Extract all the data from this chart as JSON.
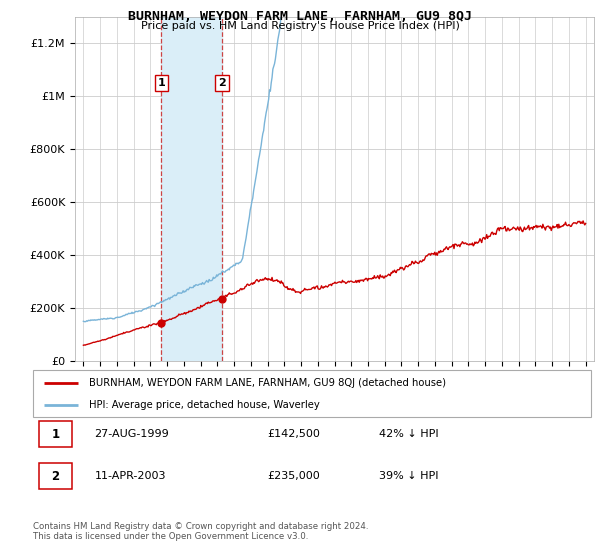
{
  "title": "BURNHAM, WEYDON FARM LANE, FARNHAM, GU9 8QJ",
  "subtitle": "Price paid vs. HM Land Registry's House Price Index (HPI)",
  "legend_line1": "BURNHAM, WEYDON FARM LANE, FARNHAM, GU9 8QJ (detached house)",
  "legend_line2": "HPI: Average price, detached house, Waverley",
  "sale1_label": "1",
  "sale1_date": "27-AUG-1999",
  "sale1_price": "£142,500",
  "sale1_info": "42% ↓ HPI",
  "sale1_year": 1999.65,
  "sale1_value": 142500,
  "sale2_label": "2",
  "sale2_date": "11-APR-2003",
  "sale2_price": "£235,000",
  "sale2_info": "39% ↓ HPI",
  "sale2_year": 2003.28,
  "sale2_value": 235000,
  "hpi_color": "#7ab4d8",
  "price_color": "#cc0000",
  "shade_color": "#daeef8",
  "footer": "Contains HM Land Registry data © Crown copyright and database right 2024.\nThis data is licensed under the Open Government Licence v3.0.",
  "ylim": [
    0,
    1300000
  ],
  "yticks": [
    0,
    200000,
    400000,
    600000,
    800000,
    1000000,
    1200000
  ],
  "xlim_left": 1994.5,
  "xlim_right": 2025.5
}
